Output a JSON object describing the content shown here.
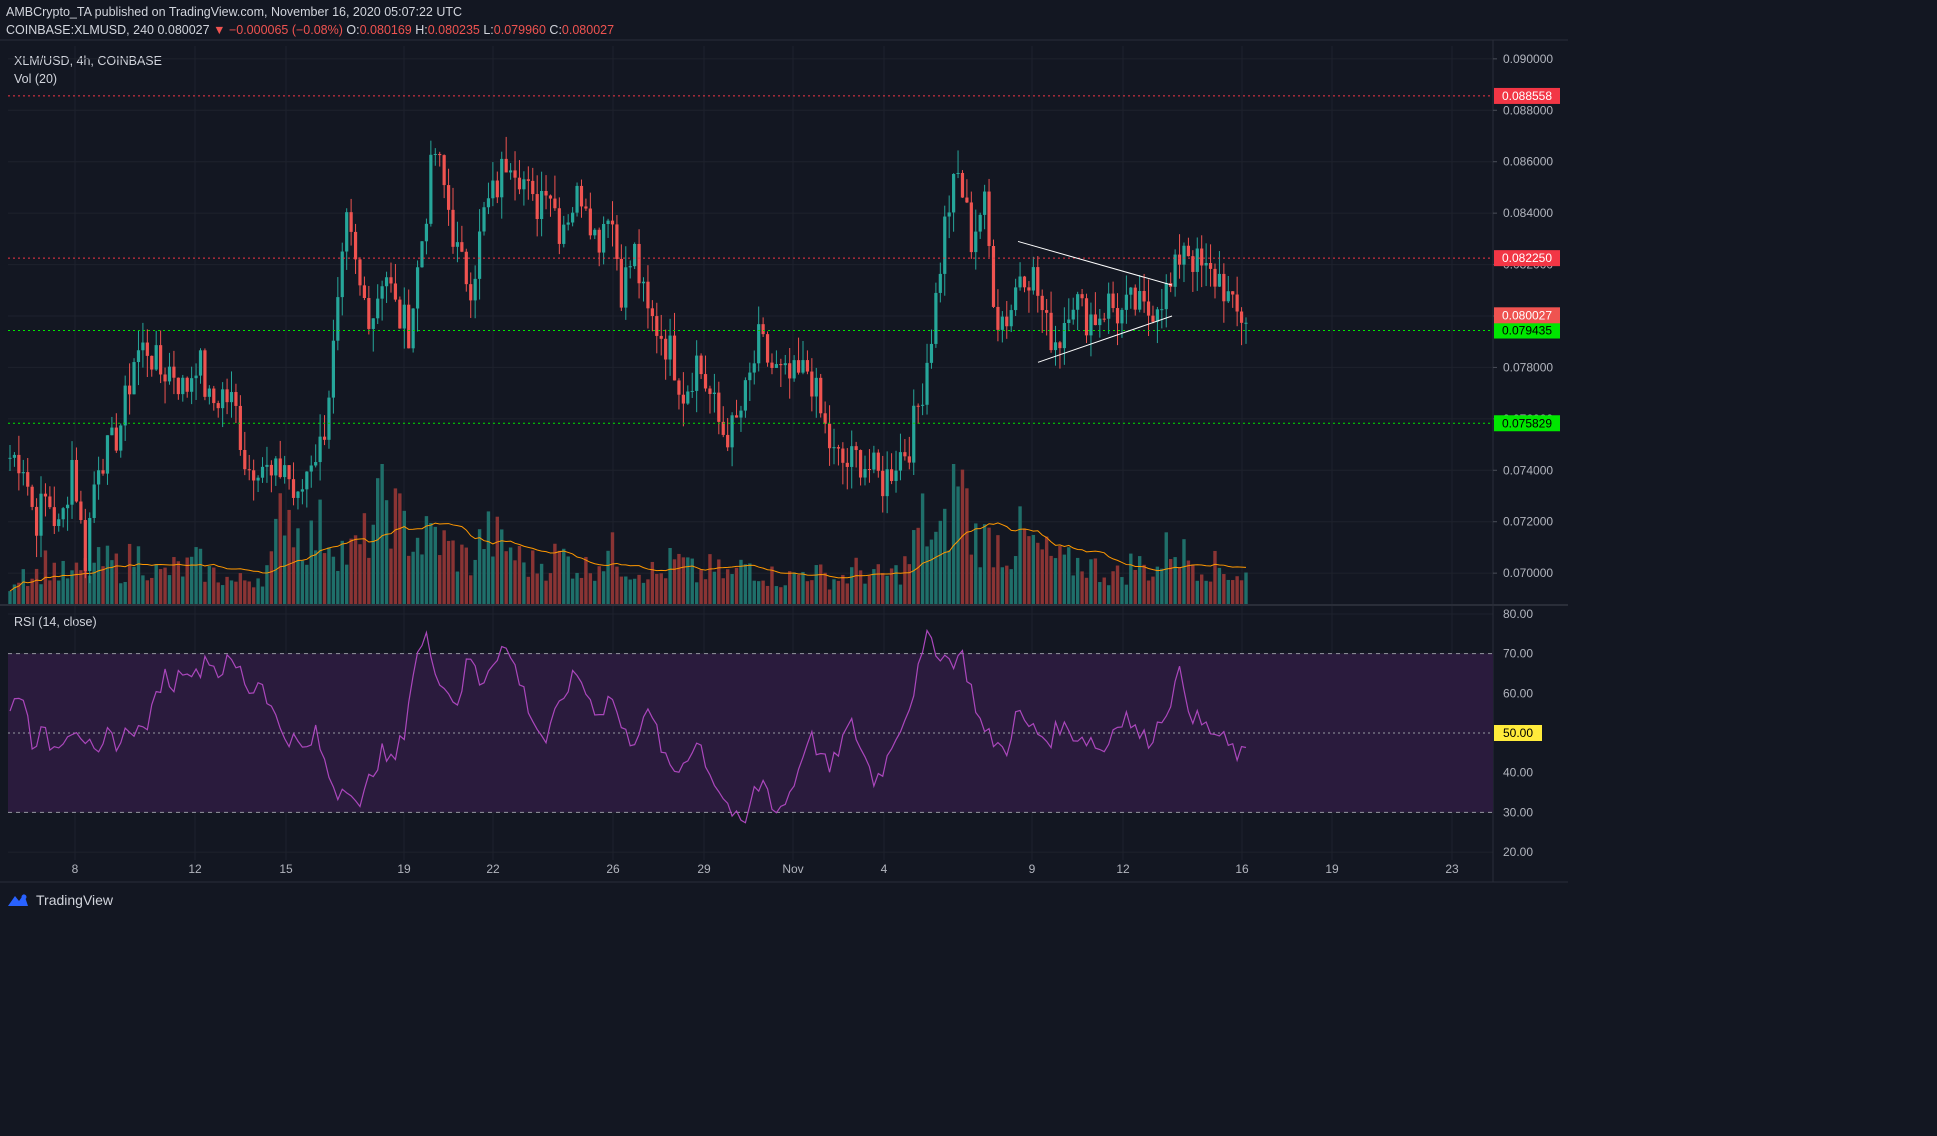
{
  "header": {
    "published": "AMBCrypto_TA published on TradingView.com, November 16, 2020 05:07:22 UTC",
    "symbol": "COINBASE:XLMUSD, 240",
    "last": "0.080027",
    "change": "−0.000065 (−0.08%)",
    "o_label": "O:",
    "o": "0.080169",
    "h_label": "H:",
    "h": "0.080235",
    "l_label": "L:",
    "l": "0.079960",
    "c_label": "C:",
    "c": "0.080027"
  },
  "pane_titles": {
    "main": "XLM/USD, 4h, COINBASE",
    "volume": "Vol (20)",
    "rsi": "RSI (14, close)"
  },
  "branding": {
    "name": "TradingView"
  },
  "colors": {
    "background": "#131722",
    "up": "#26a69a",
    "down": "#ef5350",
    "resistance": "#f23645",
    "support": "#00e600",
    "rsi_line": "#ab47bc",
    "rsi_band": "#2a1b3d",
    "vol_ma": "#ff9800",
    "midline_tag": "#ffeb3b"
  },
  "chart_data": [
    {
      "type": "candlestick",
      "title": "XLM/USD, 4h, COINBASE",
      "ylim": [
        0.0688,
        0.0905
      ],
      "y_ticks": [
        "0.090000",
        "0.088000",
        "0.086000",
        "0.084000",
        "0.082000",
        "0.080000",
        "0.078000",
        "0.076000",
        "0.074000",
        "0.072000",
        "0.070000"
      ],
      "x_ticks": [
        "8",
        "12",
        "15",
        "19",
        "22",
        "26",
        "29",
        "Nov",
        "4",
        "9",
        "12",
        "16",
        "19",
        "23"
      ],
      "ohlc_anchors_close": [
        0.0745,
        0.0745,
        0.072,
        0.073,
        0.0715,
        0.0745,
        0.0705,
        0.0745,
        0.0747,
        0.076,
        0.0785,
        0.0788,
        0.0778,
        0.078,
        0.077,
        0.0785,
        0.0765,
        0.077,
        0.0765,
        0.074,
        0.0745,
        0.0735,
        0.0743,
        0.0725,
        0.0745,
        0.075,
        0.079,
        0.0835,
        0.081,
        0.08,
        0.082,
        0.08,
        0.0795,
        0.083,
        0.0865,
        0.0845,
        0.082,
        0.0813,
        0.084,
        0.085,
        0.0865,
        0.0855,
        0.084,
        0.0855,
        0.0835,
        0.0843,
        0.085,
        0.0828,
        0.0845,
        0.081,
        0.0825,
        0.08,
        0.0795,
        0.0785,
        0.077,
        0.0783,
        0.077,
        0.0755,
        0.0755,
        0.077,
        0.079,
        0.078,
        0.0775,
        0.0775,
        0.078,
        0.076,
        0.0745,
        0.0742,
        0.0745,
        0.074,
        0.0735,
        0.0745,
        0.075,
        0.077,
        0.08,
        0.084,
        0.0855,
        0.083,
        0.0845,
        0.08,
        0.08,
        0.082,
        0.0815,
        0.0795,
        0.079,
        0.081,
        0.08,
        0.08,
        0.0805,
        0.08,
        0.0805,
        0.08,
        0.0808,
        0.081,
        0.083,
        0.082,
        0.0815,
        0.0815,
        0.08,
        0.08
      ],
      "volume": {
        "title": "Vol (20)",
        "values_relative": [
          0.15,
          0.25,
          0.2,
          0.3,
          0.22,
          0.2,
          0.25,
          0.28,
          0.3,
          0.25,
          0.35,
          0.3,
          0.2,
          0.25,
          0.25,
          0.3,
          0.22,
          0.2,
          0.15,
          0.18,
          0.2,
          0.3,
          0.8,
          0.5,
          0.45,
          0.55,
          0.45,
          0.35,
          0.4,
          0.55,
          0.8,
          0.6,
          0.5,
          0.45,
          0.5,
          0.4,
          0.35,
          0.3,
          0.5,
          0.45,
          0.4,
          0.3,
          0.28,
          0.3,
          0.35,
          0.3,
          0.25,
          0.3,
          0.38,
          0.3,
          0.25,
          0.25,
          0.2,
          0.3,
          0.28,
          0.2,
          0.25,
          0.22,
          0.2,
          0.3,
          0.25,
          0.2,
          0.18,
          0.2,
          0.25,
          0.2,
          0.18,
          0.2,
          0.25,
          0.2,
          0.2,
          0.22,
          0.3,
          0.6,
          0.45,
          0.5,
          1.0,
          0.5,
          0.45,
          0.45,
          0.35,
          0.5,
          0.4,
          0.35,
          0.3,
          0.28,
          0.3,
          0.25,
          0.22,
          0.2,
          0.3,
          0.25,
          0.25,
          0.45,
          0.35,
          0.3,
          0.28,
          0.25,
          0.22,
          0.2
        ]
      },
      "levels": [
        {
          "price": 0.088558,
          "label": "0.088558",
          "kind": "resistance"
        },
        {
          "price": 0.08225,
          "label": "0.082250",
          "kind": "resistance"
        },
        {
          "price": 0.079435,
          "label": "0.079435",
          "kind": "support"
        },
        {
          "price": 0.075829,
          "label": "0.075829",
          "kind": "support"
        }
      ],
      "last_price": {
        "price": 0.080027,
        "label": "0.080027"
      },
      "triangle": {
        "upper": [
          [
            0.0829,
            0
          ],
          [
            0.0812,
            1
          ]
        ],
        "lower": [
          [
            0.0782,
            0
          ],
          [
            0.08,
            1
          ]
        ]
      }
    },
    {
      "type": "line",
      "title": "RSI (14, close)",
      "ylim": [
        18,
        82
      ],
      "y_ticks": [
        "80.00",
        "70.00",
        "60.00",
        "50.00",
        "40.00",
        "30.00",
        "20.00"
      ],
      "band": [
        30,
        70
      ],
      "midline": {
        "value": 50,
        "label": "50.00"
      },
      "values": [
        55,
        62,
        48,
        50,
        46,
        50,
        52,
        48,
        42,
        50,
        47,
        52,
        50,
        55,
        65,
        62,
        68,
        64,
        70,
        65,
        68,
        66,
        60,
        64,
        55,
        50,
        48,
        45,
        50,
        40,
        35,
        38,
        30,
        40,
        45,
        42,
        50,
        68,
        74,
        66,
        60,
        58,
        70,
        62,
        68,
        72,
        68,
        60,
        52,
        48,
        55,
        62,
        65,
        58,
        55,
        60,
        50,
        48,
        55,
        52,
        42,
        40,
        45,
        48,
        40,
        35,
        30,
        25,
        35,
        38,
        30,
        33,
        40,
        50,
        45,
        40,
        48,
        52,
        45,
        38,
        42,
        50,
        55,
        65,
        75,
        70,
        68,
        70,
        60,
        50,
        48,
        45,
        55,
        52,
        50,
        48,
        52,
        50,
        49,
        48,
        45,
        52,
        55,
        50,
        48,
        52,
        58,
        65,
        55,
        52,
        50,
        48,
        45,
        44
      ]
    }
  ]
}
